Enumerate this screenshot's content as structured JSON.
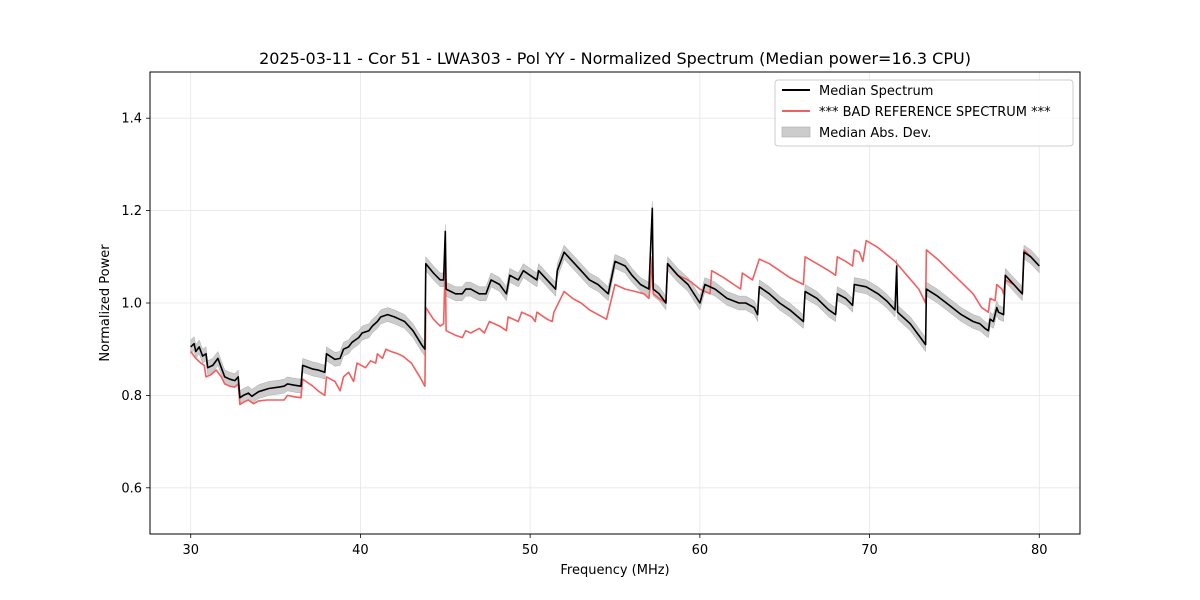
{
  "chart_data": {
    "type": "line",
    "title": "2025-03-11 - Cor 51 - LWA303 - Pol YY - Normalized Spectrum (Median power=16.3 CPU)",
    "xlabel": "Frequency (MHz)",
    "ylabel": "Normalized Power",
    "xlim": [
      27.6,
      82.4
    ],
    "ylim": [
      0.5,
      1.5
    ],
    "xticks": [
      30,
      40,
      50,
      60,
      70,
      80
    ],
    "yticks": [
      0.6,
      0.8,
      1.0,
      1.2,
      1.4
    ],
    "xtick_labels": [
      "30",
      "40",
      "50",
      "60",
      "70",
      "80"
    ],
    "ytick_labels": [
      "0.6",
      "0.8",
      "1.0",
      "1.2",
      "1.4"
    ],
    "grid": true,
    "legend_position": "top-right",
    "series": [
      {
        "name": "Median Spectrum",
        "color": "#000000",
        "band_halfwidth": 0.015,
        "points": [
          [
            30.0,
            0.905
          ],
          [
            30.2,
            0.912
          ],
          [
            30.3,
            0.895
          ],
          [
            30.5,
            0.905
          ],
          [
            30.7,
            0.885
          ],
          [
            30.9,
            0.89
          ],
          [
            31.0,
            0.86
          ],
          [
            31.3,
            0.865
          ],
          [
            31.6,
            0.88
          ],
          [
            31.8,
            0.86
          ],
          [
            32.0,
            0.84
          ],
          [
            32.3,
            0.835
          ],
          [
            32.6,
            0.832
          ],
          [
            32.8,
            0.84
          ],
          [
            32.9,
            0.795
          ],
          [
            33.1,
            0.8
          ],
          [
            33.4,
            0.805
          ],
          [
            33.6,
            0.798
          ],
          [
            34.0,
            0.808
          ],
          [
            34.6,
            0.815
          ],
          [
            35.2,
            0.818
          ],
          [
            35.5,
            0.82
          ],
          [
            35.7,
            0.825
          ],
          [
            36.1,
            0.822
          ],
          [
            36.5,
            0.82
          ],
          [
            36.6,
            0.865
          ],
          [
            37.2,
            0.857
          ],
          [
            37.5,
            0.855
          ],
          [
            37.9,
            0.85
          ],
          [
            38.0,
            0.89
          ],
          [
            38.5,
            0.878
          ],
          [
            38.8,
            0.88
          ],
          [
            39.0,
            0.9
          ],
          [
            39.3,
            0.905
          ],
          [
            39.5,
            0.915
          ],
          [
            39.9,
            0.925
          ],
          [
            40.1,
            0.935
          ],
          [
            40.5,
            0.94
          ],
          [
            40.7,
            0.95
          ],
          [
            41.0,
            0.96
          ],
          [
            41.2,
            0.97
          ],
          [
            41.6,
            0.975
          ],
          [
            42.0,
            0.97
          ],
          [
            42.3,
            0.965
          ],
          [
            42.6,
            0.96
          ],
          [
            43.1,
            0.94
          ],
          [
            43.6,
            0.91
          ],
          [
            43.8,
            0.9
          ],
          [
            43.85,
            1.085
          ],
          [
            44.3,
            1.065
          ],
          [
            44.7,
            1.05
          ],
          [
            44.9,
            1.05
          ],
          [
            45.0,
            1.155
          ],
          [
            45.05,
            1.03
          ],
          [
            45.6,
            1.02
          ],
          [
            46.0,
            1.02
          ],
          [
            46.2,
            1.03
          ],
          [
            46.5,
            1.03
          ],
          [
            47.0,
            1.02
          ],
          [
            47.4,
            1.02
          ],
          [
            47.7,
            1.05
          ],
          [
            48.2,
            1.04
          ],
          [
            48.6,
            1.02
          ],
          [
            48.8,
            1.06
          ],
          [
            49.3,
            1.05
          ],
          [
            49.6,
            1.07
          ],
          [
            50.0,
            1.06
          ],
          [
            50.4,
            1.05
          ],
          [
            50.5,
            1.07
          ],
          [
            51.0,
            1.05
          ],
          [
            51.5,
            1.03
          ],
          [
            51.6,
            1.07
          ],
          [
            52.0,
            1.11
          ],
          [
            52.5,
            1.09
          ],
          [
            53.0,
            1.07
          ],
          [
            53.5,
            1.05
          ],
          [
            54.0,
            1.04
          ],
          [
            54.6,
            1.02
          ],
          [
            55.0,
            1.09
          ],
          [
            55.6,
            1.08
          ],
          [
            56.0,
            1.06
          ],
          [
            56.5,
            1.04
          ],
          [
            57.0,
            1.03
          ],
          [
            57.2,
            1.205
          ],
          [
            57.25,
            1.03
          ],
          [
            57.6,
            1.02
          ],
          [
            58.0,
            1.0
          ],
          [
            58.1,
            1.085
          ],
          [
            58.7,
            1.06
          ],
          [
            59.3,
            1.04
          ],
          [
            60.0,
            1.0
          ],
          [
            60.3,
            1.04
          ],
          [
            60.9,
            1.03
          ],
          [
            61.6,
            1.01
          ],
          [
            62.3,
            1.0
          ],
          [
            62.7,
            1.0
          ],
          [
            63.2,
            0.99
          ],
          [
            63.4,
            0.975
          ],
          [
            63.5,
            1.035
          ],
          [
            64.1,
            1.02
          ],
          [
            64.7,
            1.0
          ],
          [
            65.3,
            0.985
          ],
          [
            66.1,
            0.96
          ],
          [
            66.2,
            1.025
          ],
          [
            66.9,
            1.01
          ],
          [
            67.6,
            0.985
          ],
          [
            68.0,
            0.975
          ],
          [
            68.1,
            1.02
          ],
          [
            68.6,
            1.01
          ],
          [
            69.0,
            0.995
          ],
          [
            69.1,
            1.04
          ],
          [
            69.8,
            1.035
          ],
          [
            70.5,
            1.02
          ],
          [
            71.0,
            1.005
          ],
          [
            71.5,
            0.985
          ],
          [
            71.6,
            1.08
          ],
          [
            71.65,
            0.98
          ],
          [
            72.4,
            0.955
          ],
          [
            73.0,
            0.925
          ],
          [
            73.3,
            0.91
          ],
          [
            73.35,
            1.03
          ],
          [
            74.0,
            1.015
          ],
          [
            74.7,
            0.995
          ],
          [
            75.4,
            0.975
          ],
          [
            76.1,
            0.96
          ],
          [
            76.5,
            0.955
          ],
          [
            76.8,
            0.945
          ],
          [
            77.0,
            0.94
          ],
          [
            77.1,
            0.965
          ],
          [
            77.3,
            0.96
          ],
          [
            77.5,
            0.99
          ],
          [
            77.6,
            0.98
          ],
          [
            77.9,
            0.975
          ],
          [
            78.0,
            1.06
          ],
          [
            78.5,
            1.04
          ],
          [
            79.0,
            1.02
          ],
          [
            79.1,
            1.11
          ],
          [
            79.5,
            1.1
          ],
          [
            80.0,
            1.08
          ]
        ]
      },
      {
        "name": "*** BAD REFERENCE SPECTRUM ***",
        "color": "#f06060",
        "points": [
          [
            30.0,
            0.895
          ],
          [
            30.3,
            0.88
          ],
          [
            30.6,
            0.87
          ],
          [
            30.8,
            0.865
          ],
          [
            30.9,
            0.84
          ],
          [
            31.2,
            0.845
          ],
          [
            31.5,
            0.855
          ],
          [
            31.8,
            0.84
          ],
          [
            32.0,
            0.825
          ],
          [
            32.3,
            0.82
          ],
          [
            32.6,
            0.818
          ],
          [
            32.8,
            0.825
          ],
          [
            32.9,
            0.78
          ],
          [
            33.1,
            0.785
          ],
          [
            33.4,
            0.79
          ],
          [
            33.7,
            0.782
          ],
          [
            34.0,
            0.788
          ],
          [
            34.5,
            0.79
          ],
          [
            35.0,
            0.79
          ],
          [
            35.5,
            0.79
          ],
          [
            35.7,
            0.8
          ],
          [
            36.1,
            0.797
          ],
          [
            36.5,
            0.795
          ],
          [
            36.6,
            0.835
          ],
          [
            37.2,
            0.82
          ],
          [
            37.5,
            0.81
          ],
          [
            37.9,
            0.8
          ],
          [
            38.0,
            0.84
          ],
          [
            38.5,
            0.83
          ],
          [
            38.8,
            0.81
          ],
          [
            39.0,
            0.84
          ],
          [
            39.3,
            0.85
          ],
          [
            39.6,
            0.83
          ],
          [
            39.8,
            0.87
          ],
          [
            40.3,
            0.86
          ],
          [
            40.6,
            0.875
          ],
          [
            40.9,
            0.87
          ],
          [
            41.0,
            0.89
          ],
          [
            41.3,
            0.88
          ],
          [
            41.5,
            0.9
          ],
          [
            41.8,
            0.895
          ],
          [
            42.2,
            0.89
          ],
          [
            42.5,
            0.885
          ],
          [
            43.0,
            0.87
          ],
          [
            43.5,
            0.84
          ],
          [
            43.8,
            0.82
          ],
          [
            43.85,
            0.99
          ],
          [
            44.3,
            0.965
          ],
          [
            44.7,
            0.95
          ],
          [
            44.9,
            0.955
          ],
          [
            45.0,
            1.09
          ],
          [
            45.05,
            0.94
          ],
          [
            45.6,
            0.93
          ],
          [
            46.0,
            0.925
          ],
          [
            46.2,
            0.94
          ],
          [
            46.5,
            0.935
          ],
          [
            47.0,
            0.945
          ],
          [
            47.3,
            0.935
          ],
          [
            47.6,
            0.96
          ],
          [
            48.2,
            0.95
          ],
          [
            48.6,
            0.94
          ],
          [
            48.7,
            0.97
          ],
          [
            49.3,
            0.96
          ],
          [
            49.5,
            0.98
          ],
          [
            50.1,
            0.97
          ],
          [
            50.3,
            0.96
          ],
          [
            50.4,
            0.98
          ],
          [
            51.0,
            0.965
          ],
          [
            51.3,
            0.96
          ],
          [
            51.4,
            0.98
          ],
          [
            52.0,
            1.025
          ],
          [
            52.5,
            1.01
          ],
          [
            53.0,
            1.0
          ],
          [
            53.5,
            0.985
          ],
          [
            54.0,
            0.975
          ],
          [
            54.5,
            0.965
          ],
          [
            55.0,
            1.04
          ],
          [
            55.6,
            1.03
          ],
          [
            56.2,
            1.025
          ],
          [
            56.7,
            1.02
          ],
          [
            57.0,
            1.01
          ],
          [
            57.1,
            1.04
          ],
          [
            57.2,
            1.1
          ],
          [
            57.25,
            1.02
          ],
          [
            57.6,
            1.01
          ],
          [
            58.0,
            1.0
          ],
          [
            58.1,
            1.085
          ],
          [
            58.7,
            1.06
          ],
          [
            59.3,
            1.05
          ],
          [
            59.5,
            1.045
          ],
          [
            60.0,
            1.03
          ],
          [
            60.6,
            1.02
          ],
          [
            60.7,
            1.07
          ],
          [
            61.4,
            1.055
          ],
          [
            62.0,
            1.04
          ],
          [
            62.4,
            1.03
          ],
          [
            62.5,
            1.065
          ],
          [
            63.1,
            1.05
          ],
          [
            63.5,
            1.095
          ],
          [
            64.1,
            1.085
          ],
          [
            64.7,
            1.07
          ],
          [
            65.3,
            1.055
          ],
          [
            66.1,
            1.04
          ],
          [
            66.2,
            1.1
          ],
          [
            66.9,
            1.085
          ],
          [
            67.6,
            1.07
          ],
          [
            68.0,
            1.06
          ],
          [
            68.1,
            1.1
          ],
          [
            68.6,
            1.09
          ],
          [
            69.0,
            1.08
          ],
          [
            69.1,
            1.115
          ],
          [
            69.4,
            1.11
          ],
          [
            69.6,
            1.09
          ],
          [
            69.8,
            1.135
          ],
          [
            70.5,
            1.12
          ],
          [
            71.5,
            1.09
          ],
          [
            72.2,
            1.06
          ],
          [
            72.9,
            1.03
          ],
          [
            73.3,
            1.0
          ],
          [
            73.35,
            1.115
          ],
          [
            74.0,
            1.095
          ],
          [
            74.7,
            1.07
          ],
          [
            75.4,
            1.045
          ],
          [
            76.1,
            1.02
          ],
          [
            76.6,
            0.99
          ],
          [
            77.0,
            0.98
          ],
          [
            77.1,
            1.01
          ],
          [
            77.4,
            1.005
          ],
          [
            77.5,
            1.04
          ],
          [
            77.8,
            1.03
          ],
          [
            77.9,
            1.02
          ],
          [
            78.0,
            1.05
          ],
          [
            78.5,
            1.04
          ],
          [
            79.0,
            1.02
          ],
          [
            79.1,
            1.115
          ],
          [
            79.5,
            1.1
          ],
          [
            80.0,
            1.08
          ]
        ]
      },
      {
        "name": "Median Abs. Dev.",
        "color": "#000000",
        "fill": "#cccccc",
        "kind": "band"
      }
    ]
  }
}
